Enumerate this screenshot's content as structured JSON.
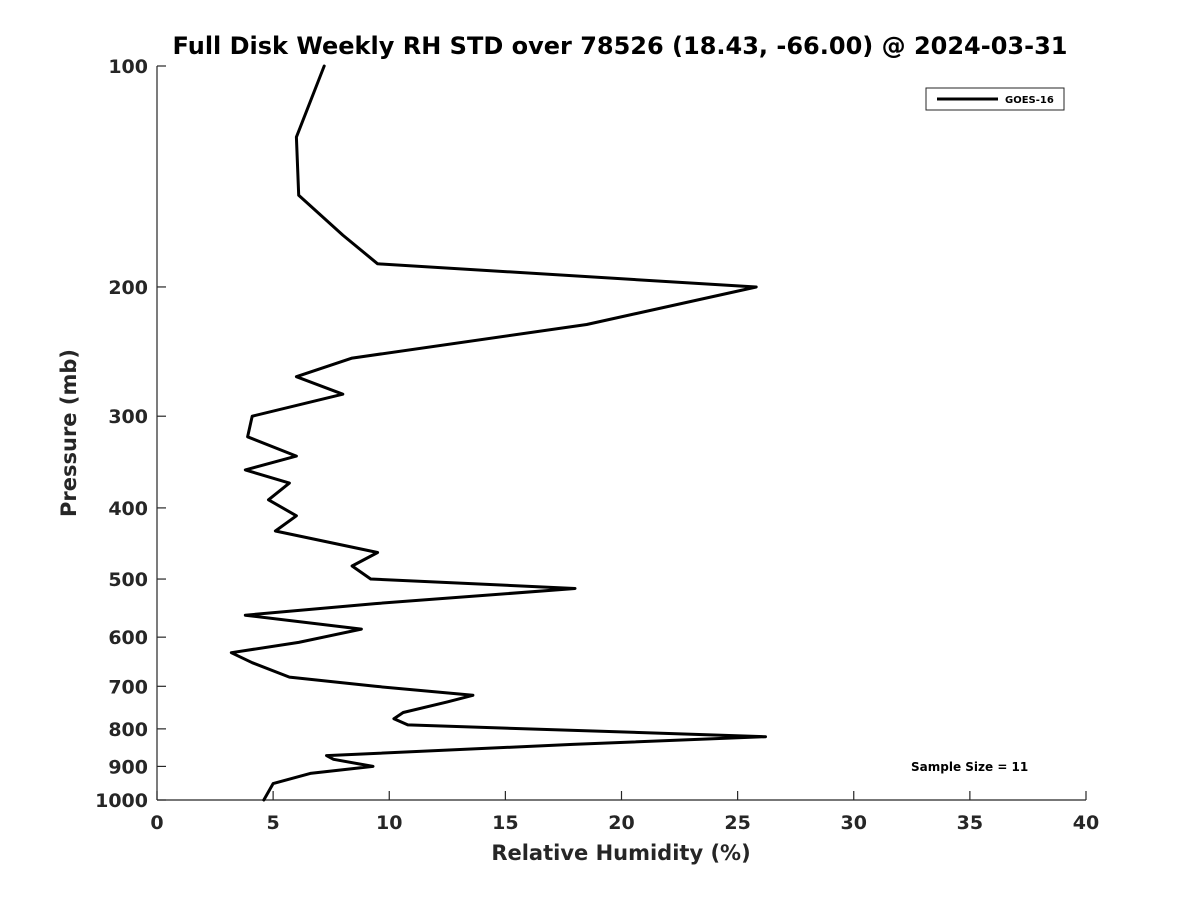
{
  "chart_data": {
    "type": "line",
    "title": "Full Disk Weekly RH STD over 78526 (18.43, -66.00) @ 2024-03-31",
    "xlabel": "Relative Humidity (%)",
    "ylabel": "Pressure (mb)",
    "xlim": [
      0,
      40
    ],
    "ylim": [
      100,
      1000
    ],
    "yscale": "log",
    "y_reversed": true,
    "grid": false,
    "legend_position": "top-right",
    "xticks": [
      0,
      5,
      10,
      15,
      20,
      25,
      30,
      35,
      40
    ],
    "xtick_labels": [
      "0",
      "5",
      "10",
      "15",
      "20",
      "25",
      "30",
      "35",
      "40"
    ],
    "yticks": [
      100,
      200,
      300,
      400,
      500,
      600,
      700,
      800,
      900,
      1000
    ],
    "ytick_labels": [
      "100",
      "200",
      "300",
      "400",
      "500",
      "600",
      "700",
      "800",
      "900",
      "1000"
    ],
    "series": [
      {
        "name": "GOES-16",
        "color": "#000000",
        "points": [
          [
            7.2,
            100
          ],
          [
            6.0,
            125
          ],
          [
            6.1,
            150
          ],
          [
            8.0,
            170
          ],
          [
            9.5,
            186
          ],
          [
            25.8,
            200
          ],
          [
            18.5,
            225
          ],
          [
            8.4,
            250
          ],
          [
            6.0,
            265
          ],
          [
            8.0,
            280
          ],
          [
            4.1,
            300
          ],
          [
            3.9,
            320
          ],
          [
            6.0,
            340
          ],
          [
            3.8,
            355
          ],
          [
            5.7,
            370
          ],
          [
            4.8,
            390
          ],
          [
            6.0,
            410
          ],
          [
            5.1,
            430
          ],
          [
            9.5,
            460
          ],
          [
            8.4,
            480
          ],
          [
            9.2,
            500
          ],
          [
            18.0,
            515
          ],
          [
            9.4,
            540
          ],
          [
            3.8,
            560
          ],
          [
            8.8,
            585
          ],
          [
            6.1,
            610
          ],
          [
            3.2,
            630
          ],
          [
            4.1,
            650
          ],
          [
            5.7,
            680
          ],
          [
            9.4,
            700
          ],
          [
            13.6,
            720
          ],
          [
            12.5,
            735
          ],
          [
            10.6,
            760
          ],
          [
            10.2,
            775
          ],
          [
            10.8,
            790
          ],
          [
            26.2,
            820
          ],
          [
            17.9,
            840
          ],
          [
            7.3,
            870
          ],
          [
            7.6,
            880
          ],
          [
            9.3,
            900
          ],
          [
            6.6,
            920
          ],
          [
            5.0,
            950
          ],
          [
            4.6,
            1000
          ]
        ]
      }
    ],
    "annotations": [
      "Sample Size = 11"
    ]
  }
}
